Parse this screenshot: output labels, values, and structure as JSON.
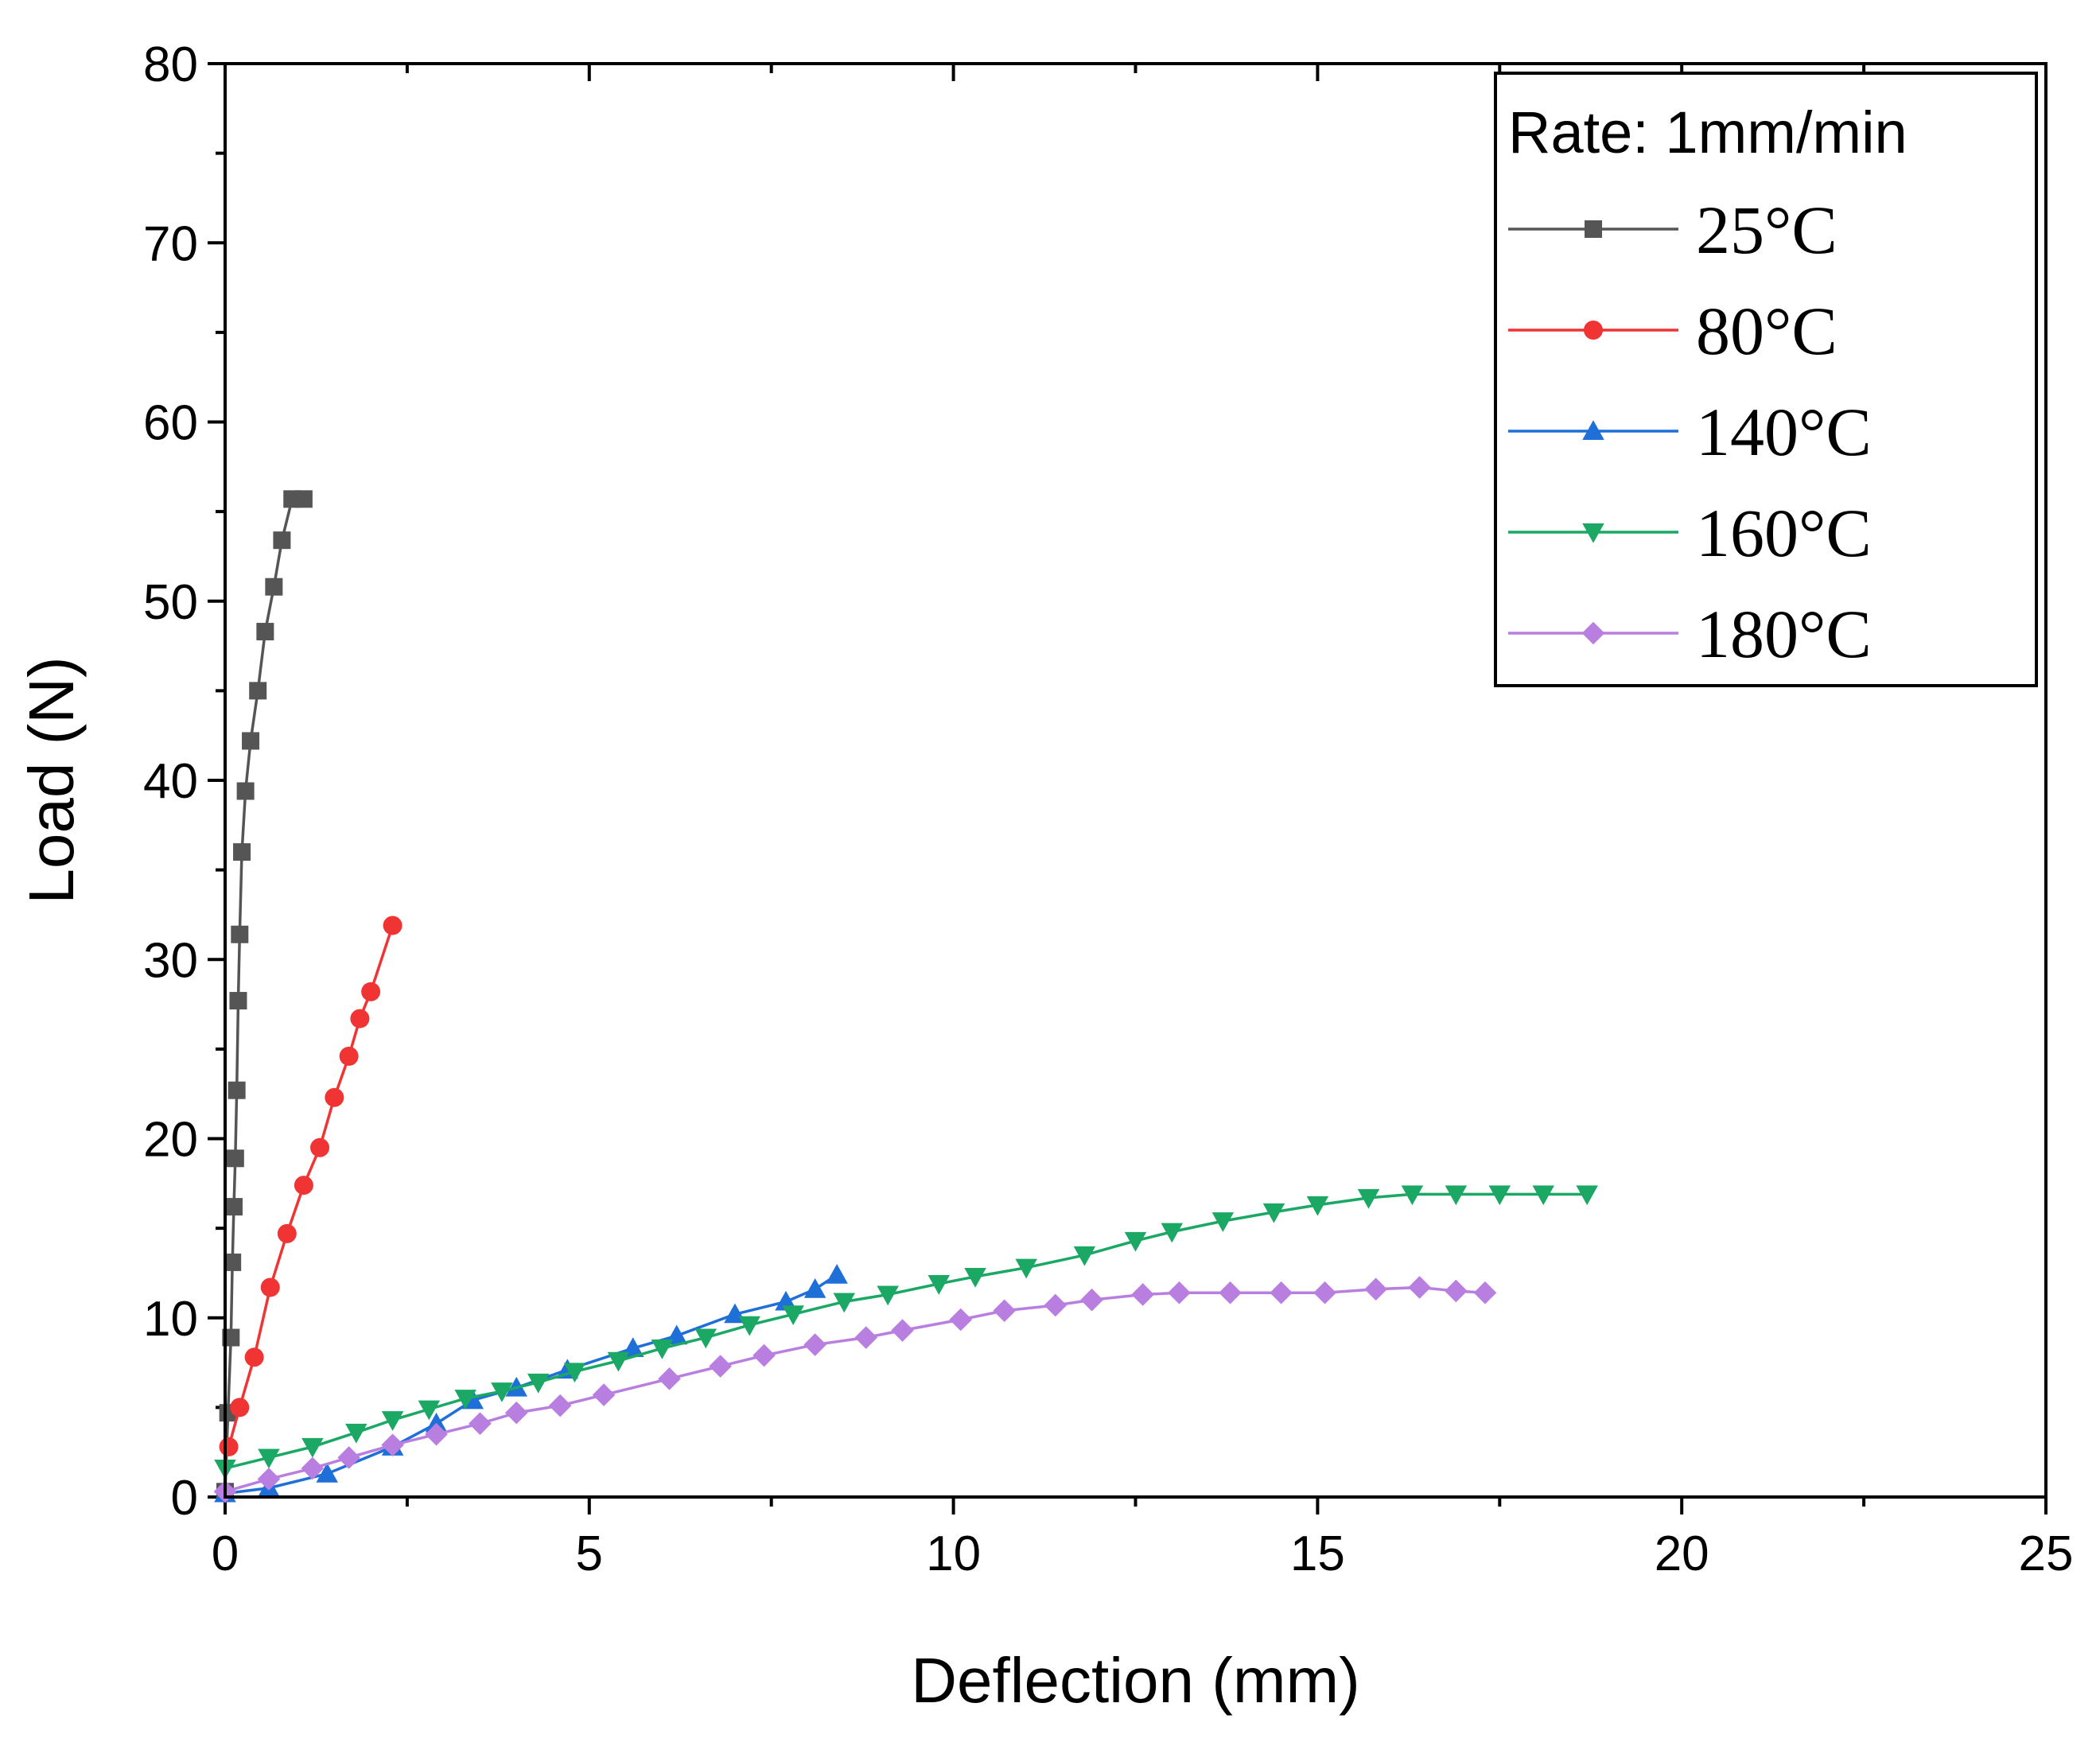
{
  "chart_data": {
    "type": "line",
    "title": "",
    "xlabel": "Deflection (mm)",
    "ylabel": "Load (N)",
    "xlim": [
      0,
      25
    ],
    "ylim": [
      0,
      80
    ],
    "xticks": [
      0,
      5,
      10,
      15,
      20,
      25
    ],
    "yticks": [
      0,
      10,
      20,
      30,
      40,
      50,
      60,
      70,
      80
    ],
    "legend": {
      "title": "Rate: 1mm/min",
      "placement": "top-right"
    },
    "series": [
      {
        "name": "25°C",
        "color": "#555555",
        "marker": "square",
        "x": [
          0.0,
          0.04,
          0.08,
          0.1,
          0.12,
          0.14,
          0.16,
          0.18,
          0.2,
          0.23,
          0.28,
          0.35,
          0.45,
          0.55,
          0.67,
          0.78,
          0.92,
          1.08
        ],
        "y": [
          0.3,
          4.7,
          8.9,
          13.1,
          16.2,
          18.9,
          22.7,
          27.7,
          31.4,
          36.0,
          39.4,
          42.2,
          45.0,
          48.3,
          50.8,
          53.4,
          55.7,
          55.7
        ]
      },
      {
        "name": "80°C",
        "color": "#f03434",
        "marker": "circle",
        "x": [
          0.05,
          0.2,
          0.4,
          0.62,
          0.85,
          1.08,
          1.3,
          1.5,
          1.7,
          1.85,
          2.0,
          2.3
        ],
        "y": [
          2.8,
          5.0,
          7.8,
          11.7,
          14.7,
          17.4,
          19.5,
          22.3,
          24.6,
          26.7,
          28.2,
          31.9
        ]
      },
      {
        "name": "140°C",
        "color": "#1f6fd8",
        "marker": "triangle-up",
        "x": [
          0.0,
          0.6,
          1.4,
          2.3,
          2.9,
          3.4,
          4.0,
          4.7,
          5.6,
          6.2,
          7.0,
          7.7,
          8.1,
          8.4
        ],
        "y": [
          0.2,
          0.5,
          1.3,
          2.8,
          4.1,
          5.4,
          6.1,
          7.1,
          8.3,
          9.0,
          10.2,
          10.9,
          11.6,
          12.4
        ]
      },
      {
        "name": "160°C",
        "color": "#1aa864",
        "marker": "triangle-down",
        "x": [
          0.0,
          0.6,
          1.2,
          1.8,
          2.3,
          2.8,
          3.3,
          3.8,
          4.3,
          4.8,
          5.4,
          6.0,
          6.6,
          7.2,
          7.8,
          8.5,
          9.1,
          9.8,
          10.3,
          11.0,
          11.8,
          12.5,
          13.0,
          13.7,
          14.4,
          15.0,
          15.7,
          16.3,
          16.9,
          17.5,
          18.1,
          18.7
        ],
        "y": [
          1.6,
          2.2,
          2.8,
          3.6,
          4.3,
          4.9,
          5.5,
          5.9,
          6.4,
          7.0,
          7.6,
          8.3,
          8.9,
          9.6,
          10.2,
          10.9,
          11.3,
          11.9,
          12.3,
          12.8,
          13.5,
          14.3,
          14.8,
          15.4,
          15.9,
          16.3,
          16.7,
          16.9,
          16.9,
          16.9,
          16.9,
          16.9
        ]
      },
      {
        "name": "180°C",
        "color": "#b97fe0",
        "marker": "diamond",
        "x": [
          0.0,
          0.6,
          1.2,
          1.7,
          2.3,
          2.9,
          3.5,
          4.0,
          4.6,
          5.2,
          6.1,
          6.8,
          7.4,
          8.1,
          8.8,
          9.3,
          10.1,
          10.7,
          11.4,
          11.9,
          12.6,
          13.1,
          13.8,
          14.5,
          15.1,
          15.8,
          16.4,
          16.9,
          17.3
        ],
        "y": [
          0.3,
          1.0,
          1.6,
          2.2,
          2.9,
          3.5,
          4.1,
          4.7,
          5.1,
          5.7,
          6.6,
          7.3,
          7.9,
          8.5,
          8.9,
          9.3,
          9.9,
          10.4,
          10.7,
          11.0,
          11.3,
          11.4,
          11.4,
          11.4,
          11.4,
          11.6,
          11.7,
          11.5,
          11.4
        ]
      }
    ]
  }
}
